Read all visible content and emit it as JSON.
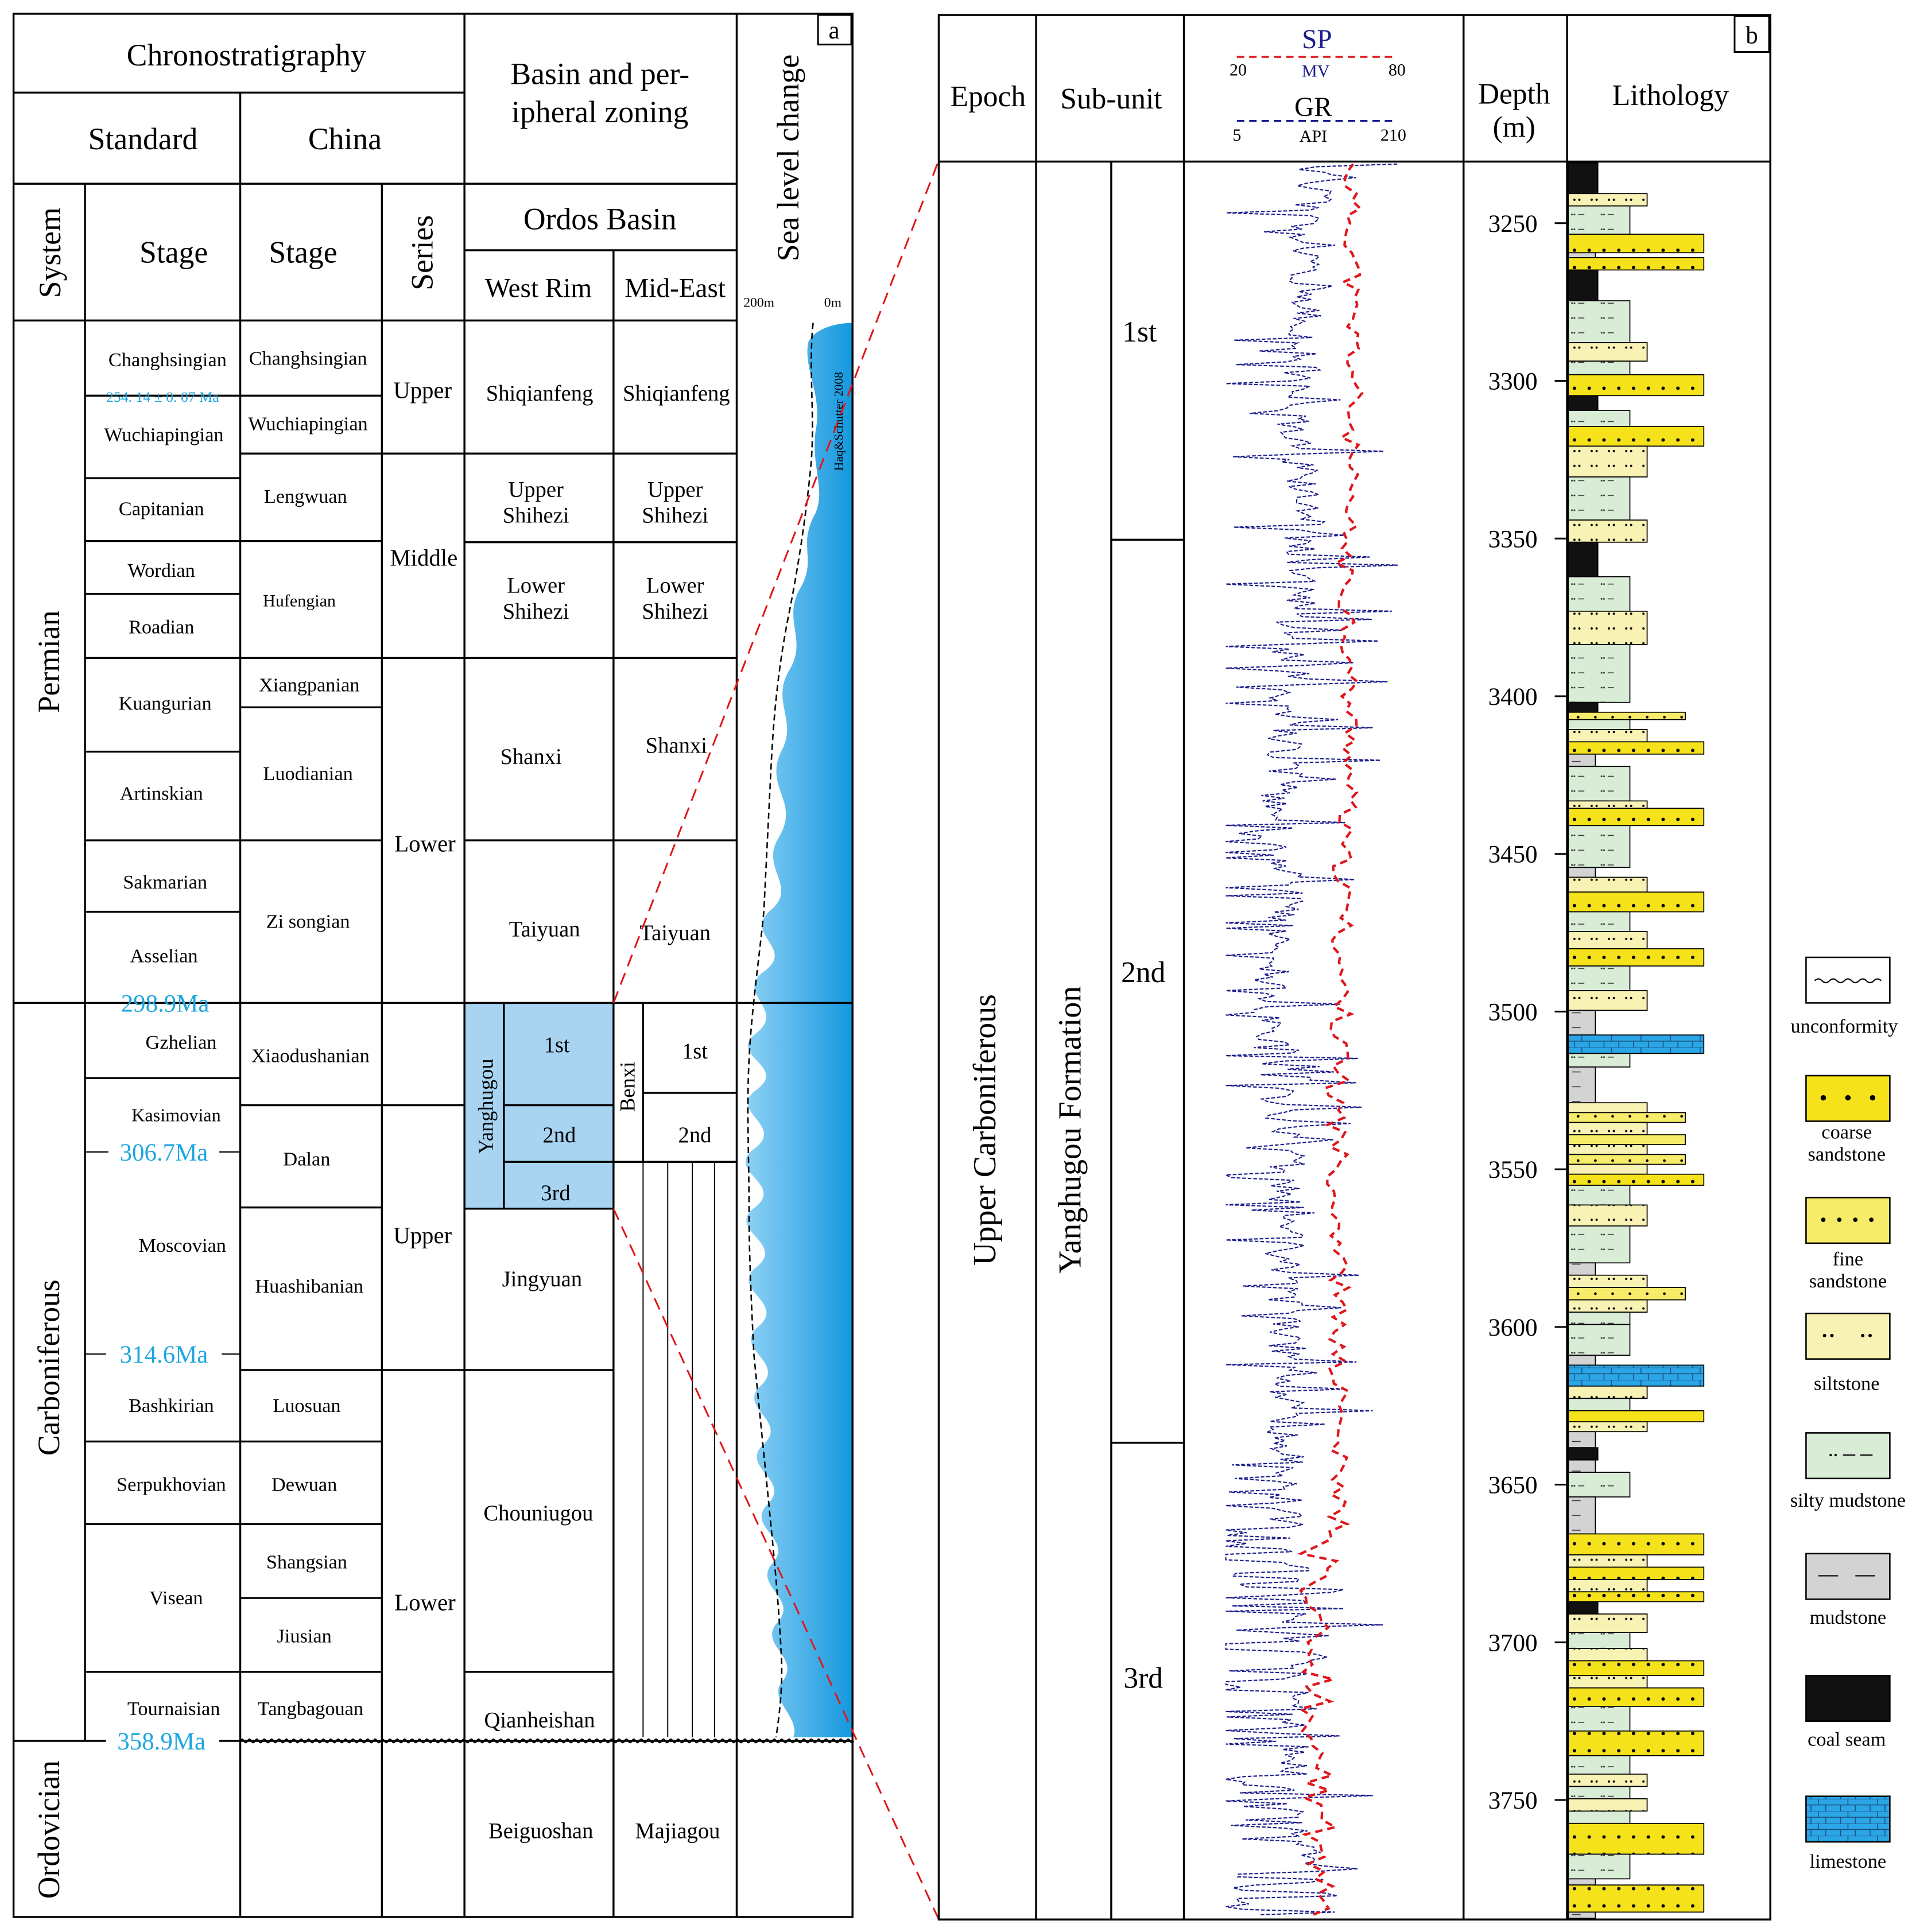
{
  "panel_a": {
    "label": "a",
    "headers": {
      "chronostratigraphy": "Chronostratigraphy",
      "standard": "Standard",
      "china": "China",
      "system": "System",
      "stage_std": "Stage",
      "stage_cn": "Stage",
      "series": "Series",
      "basin_zoning_l1": "Basin and per-",
      "basin_zoning_l2": "ipheral zoning",
      "ordos": "Ordos Basin",
      "west_rim": "West Rim",
      "mid_east": "Mid-East",
      "sea_level": "Sea level change",
      "scale_left": "200m",
      "scale_right": "0m",
      "curve_source": "Haq&Schutter 2008"
    },
    "systems": [
      "Permian",
      "Carboniferous",
      "Ordovician"
    ],
    "standard_stages": [
      "Changhsingian",
      "Wuchiapingian",
      "Capitanian",
      "Wordian",
      "Roadian",
      "Kuangurian",
      "Artinskian",
      "Sakmarian",
      "Asselian",
      "Gzhelian",
      "Kasimovian",
      "Moscovian",
      "Bashkirian",
      "Serpukhovian",
      "Visean",
      "Tournaisian"
    ],
    "ages": [
      "254. 14 ± 0. 07 Ma",
      "298.9Ma",
      "306.7Ma",
      "314.6Ma",
      "358.9Ma"
    ],
    "china_stages": [
      "Changhsingian",
      "Wuchiapingian",
      "Lengwuan",
      "Hufengian",
      "Xiangpanian",
      "Luodianian",
      "Zi songian",
      "Xiaodushanian",
      "Dalan",
      "Huashibanian",
      "Luosuan",
      "Dewuan",
      "Shangsian",
      "Jiusian",
      "Tangbagouan"
    ],
    "series": [
      "Upper",
      "Middle",
      "Lower",
      "Upper",
      "Lower"
    ],
    "west_rim": [
      "Shiqianfeng",
      "Upper Shihezi",
      "Lower Shihezi",
      "Shanxi",
      "Taiyuan",
      "Jingyuan",
      "Chouniugou",
      "Qianheishan",
      "Beiguoshan"
    ],
    "mid_east": [
      "Shiqianfeng",
      "Upper Shihezi",
      "Lower Shihezi",
      "Shanxi",
      "Taiyuan",
      "Majiagou"
    ],
    "yanghugou": {
      "name": "Yanghugou",
      "members": [
        "1st",
        "2nd",
        "3rd"
      ]
    },
    "benxi": {
      "name": "Benxi",
      "members": [
        "1st",
        "2nd"
      ]
    }
  },
  "panel_b": {
    "label": "b",
    "headers": {
      "epoch": "Epoch",
      "sub_unit": "Sub-unit",
      "sp": "SP",
      "sp_min": "20",
      "sp_unit": "MV",
      "sp_max": "80",
      "gr": "GR",
      "gr_min": "5",
      "gr_unit": "API",
      "gr_max": "210",
      "depth_l1": "Depth",
      "depth_l2": "(m)",
      "lithology": "Lithology"
    },
    "epoch": "Upper  Carboniferous",
    "formation": "Yanghugou  Formation",
    "sub_units": [
      "1st",
      "2nd",
      "3rd"
    ],
    "depth_ticks": [
      "3250",
      "3300",
      "3350",
      "3400",
      "3450",
      "3500",
      "3550",
      "3600",
      "3650",
      "3700",
      "3750"
    ]
  },
  "legend": {
    "items": [
      "unconformity",
      "coarse sandstone",
      "fine sandstone",
      "siltstone",
      "silty mudstone",
      "mudstone",
      "coal seam",
      "limestone"
    ]
  },
  "colors": {
    "sea": "#2aa6e6",
    "yanghugou_fill": "#a8d4f2",
    "age_text": "#1ea6e0",
    "sp_curve": "#e0161a",
    "gr_curve": "#1b1d8c",
    "coarse": "#f6e21a",
    "fine": "#f7ec6a",
    "silt": "#f8f2b4",
    "silty_mud": "#d8ecd6",
    "mud": "#d3d3d3",
    "coal": "#111111",
    "lime": "#2aa6e6"
  }
}
